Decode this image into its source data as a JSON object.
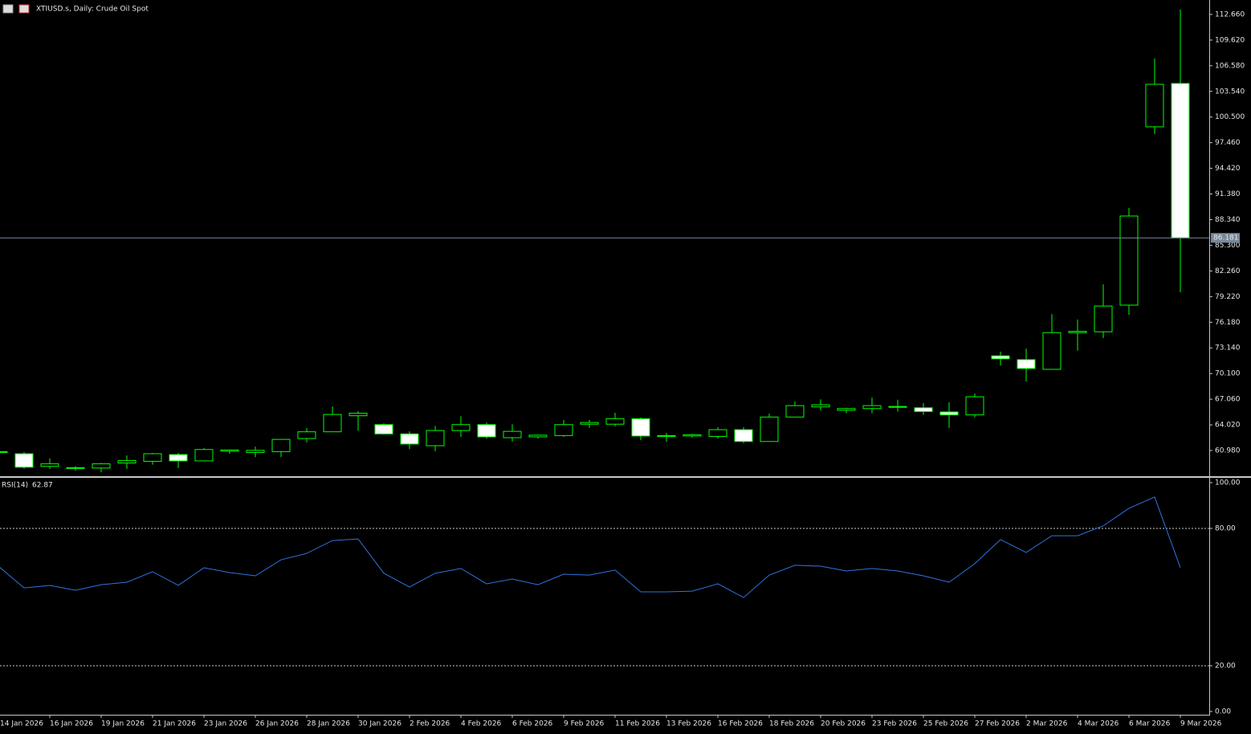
{
  "chart_data": [
    {
      "type": "candlestick",
      "title": "XTIUSD.s, Daily:  Crude Oil Spot",
      "categories": [
        "14 Jan 2026",
        null,
        "16 Jan 2026",
        null,
        "19 Jan 2026",
        null,
        "21 Jan 2026",
        null,
        "23 Jan 2026",
        null,
        "26 Jan 2026",
        null,
        "28 Jan 2026",
        null,
        "30 Jan 2026",
        null,
        "2 Feb 2026",
        null,
        "4 Feb 2026",
        null,
        "6 Feb 2026",
        null,
        "9 Feb 2026",
        null,
        "11 Feb 2026",
        null,
        "13 Feb 2026",
        null,
        "16 Feb 2026",
        null,
        "18 Feb 2026",
        null,
        "20 Feb 2026",
        null,
        "23 Feb 2026",
        null,
        "25 Feb 2026",
        null,
        "27 Feb 2026",
        null,
        "2 Mar 2026",
        null,
        "4 Mar 2026",
        null,
        "6 Mar 2026",
        null,
        "9 Mar 2026"
      ],
      "open": [
        60.85,
        60.6,
        59.1,
        58.9,
        58.9,
        59.5,
        59.7,
        60.5,
        59.75,
        60.9,
        60.75,
        60.85,
        62.4,
        63.2,
        65.1,
        64.05,
        62.95,
        61.55,
        63.35,
        64.05,
        62.5,
        62.6,
        62.75,
        64.1,
        64.1,
        64.75,
        62.65,
        62.7,
        62.65,
        63.45,
        62.05,
        64.95,
        66.15,
        65.75,
        65.95,
        66.2,
        66.05,
        65.55,
        65.2,
        72.2,
        71.75,
        70.6,
        74.95,
        75.05,
        78.21,
        99.34,
        104.48
      ],
      "high": [
        60.95,
        60.8,
        60.05,
        59.1,
        59.5,
        60.4,
        60.7,
        60.7,
        61.25,
        61.1,
        61.45,
        62.35,
        63.65,
        66.2,
        65.65,
        64.2,
        63.25,
        63.9,
        65.05,
        64.3,
        64.1,
        62.85,
        64.6,
        64.6,
        65.45,
        64.9,
        63.05,
        62.95,
        63.75,
        63.75,
        65.35,
        66.8,
        67.05,
        66.05,
        67.25,
        67.0,
        66.6,
        66.7,
        67.75,
        72.7,
        73.05,
        77.15,
        76.5,
        80.68,
        89.73,
        107.43,
        113.23
      ],
      "low": [
        60.6,
        58.8,
        58.8,
        58.6,
        58.4,
        58.8,
        59.3,
        58.9,
        59.75,
        60.6,
        60.2,
        60.2,
        61.95,
        63.2,
        63.3,
        62.85,
        61.15,
        60.9,
        62.6,
        62.4,
        62.05,
        62.4,
        62.6,
        63.65,
        63.85,
        62.2,
        62.0,
        62.5,
        62.4,
        61.85,
        62.05,
        64.95,
        65.75,
        65.4,
        65.4,
        65.6,
        65.2,
        63.65,
        64.9,
        71.05,
        69.15,
        70.6,
        72.8,
        74.3,
        77.06,
        98.48,
        79.73
      ],
      "close": [
        60.75,
        59.0,
        59.4,
        58.95,
        59.4,
        59.8,
        60.6,
        59.75,
        61.1,
        61.05,
        61.0,
        62.3,
        63.2,
        65.25,
        65.4,
        62.95,
        61.75,
        63.35,
        64.05,
        62.6,
        63.25,
        62.8,
        64.05,
        64.3,
        64.75,
        62.7,
        62.75,
        62.85,
        63.45,
        62.05,
        64.95,
        66.3,
        66.4,
        65.95,
        66.3,
        66.1,
        65.6,
        65.2,
        67.35,
        71.85,
        70.7,
        74.95,
        75.1,
        78.1,
        88.77,
        104.38,
        86.181
      ],
      "last_price": 86.181,
      "colors": {
        "wick": "#00ff00",
        "up_fill": "#000000",
        "down_fill": "#ffffff",
        "last_price_line": "#778899"
      },
      "ylim": [
        58.03,
        114.18
      ],
      "yticks": [
        {
          "value": 112.66,
          "label": "112.660"
        },
        {
          "value": 109.62,
          "label": "109.620"
        },
        {
          "value": 106.58,
          "label": "106.580"
        },
        {
          "value": 103.54,
          "label": "103.540"
        },
        {
          "value": 100.5,
          "label": "100.500"
        },
        {
          "value": 97.46,
          "label": "97.460"
        },
        {
          "value": 94.42,
          "label": "94.420"
        },
        {
          "value": 91.38,
          "label": "91.380"
        },
        {
          "value": 88.34,
          "label": "88.340"
        },
        {
          "value": 85.3,
          "label": "85.300"
        },
        {
          "value": 82.26,
          "label": "82.260"
        },
        {
          "value": 79.22,
          "label": "79.220"
        },
        {
          "value": 76.18,
          "label": "76.180"
        },
        {
          "value": 73.14,
          "label": "73.140"
        },
        {
          "value": 70.1,
          "label": "70.100"
        },
        {
          "value": 67.06,
          "label": "67.060"
        },
        {
          "value": 64.02,
          "label": "64.020"
        },
        {
          "value": 60.98,
          "label": "60.980"
        }
      ]
    },
    {
      "type": "line",
      "title": "RSI(14)",
      "series": [
        {
          "name": "RSI(14)",
          "color": "#2f73e0",
          "values": [
            63.5,
            54.0,
            55.1,
            53.0,
            55.4,
            56.5,
            61.1,
            55.1,
            62.8,
            60.7,
            59.3,
            66.3,
            69.1,
            74.7,
            75.4,
            60.4,
            54.4,
            60.4,
            62.5,
            55.8,
            57.9,
            55.4,
            60.0,
            59.6,
            61.8,
            52.3,
            52.3,
            52.6,
            55.8,
            49.8,
            59.6,
            63.9,
            63.5,
            61.4,
            62.5,
            61.4,
            59.3,
            56.5,
            64.6,
            75.1,
            69.5,
            76.8,
            76.8,
            81.1,
            88.8,
            93.7,
            62.87
          ]
        }
      ],
      "levels": [
        80,
        20
      ],
      "ylim": [
        0,
        100
      ],
      "yticks": [
        {
          "value": 100,
          "label": "100.00"
        },
        {
          "value": 80,
          "label": "80.00"
        },
        {
          "value": 20,
          "label": "20.00"
        },
        {
          "value": 0,
          "label": "0.00"
        }
      ]
    }
  ]
}
